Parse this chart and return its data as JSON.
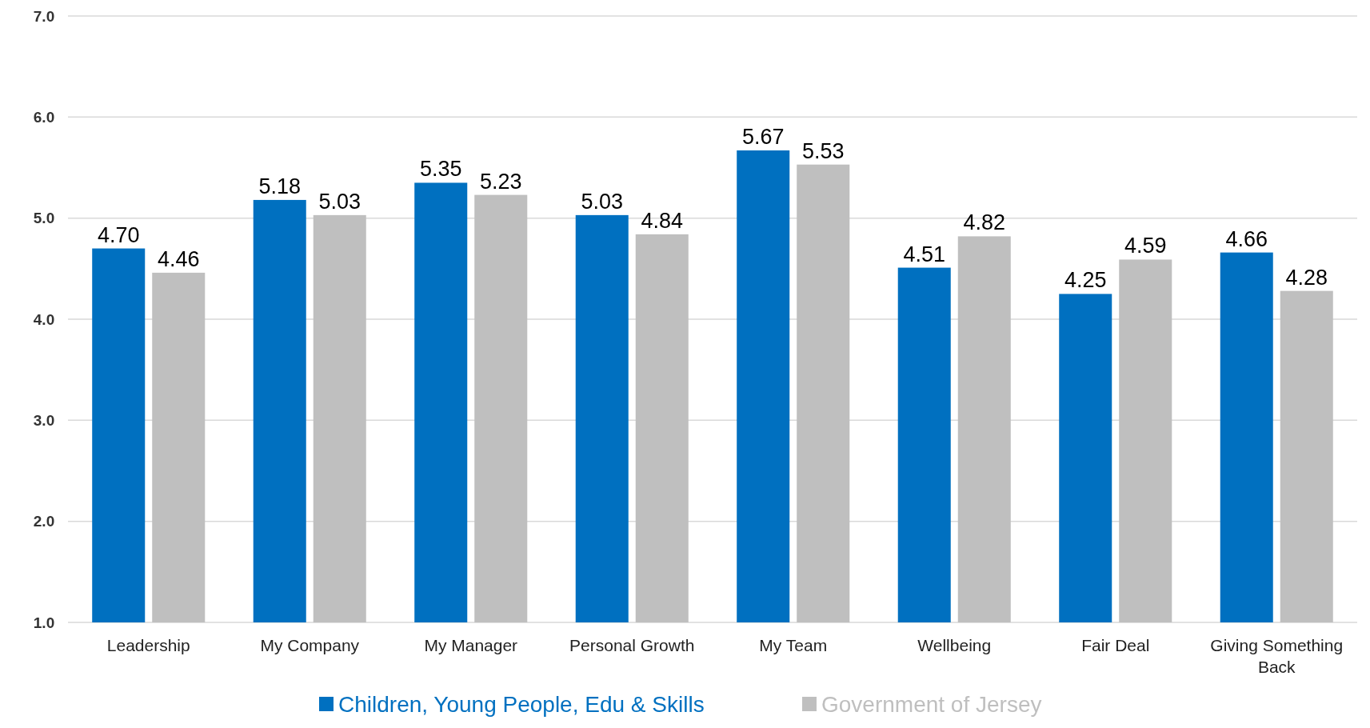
{
  "chart_data": {
    "type": "bar",
    "categories": [
      "Leadership",
      "My Company",
      "My Manager",
      "Personal Growth",
      "My Team",
      "Wellbeing",
      "Fair Deal",
      "Giving Something Back"
    ],
    "series": [
      {
        "name": "Children, Young People, Edu & Skills",
        "color": "#0070c0",
        "values": [
          4.7,
          5.18,
          5.35,
          5.03,
          5.67,
          4.51,
          4.25,
          4.66
        ],
        "value_labels": [
          "4.70",
          "5.18",
          "5.35",
          "5.03",
          "5.67",
          "4.51",
          "4.25",
          "4.66"
        ]
      },
      {
        "name": "Government of Jersey",
        "color": "#bfbfbf",
        "values": [
          4.46,
          5.03,
          5.23,
          4.84,
          5.53,
          4.82,
          4.59,
          4.28
        ],
        "value_labels": [
          "4.46",
          "5.03",
          "5.23",
          "4.84",
          "5.53",
          "4.82",
          "4.59",
          "4.28"
        ]
      }
    ],
    "ylim": [
      1,
      7
    ],
    "yticks": [
      {
        "value": 1,
        "label": "1.0"
      },
      {
        "value": 2,
        "label": "2.0"
      },
      {
        "value": 3,
        "label": "3.0"
      },
      {
        "value": 4,
        "label": "4.0"
      },
      {
        "value": 5,
        "label": "5.0"
      },
      {
        "value": 6,
        "label": "6.0"
      },
      {
        "value": 7,
        "label": "7.0"
      }
    ],
    "grid": "y",
    "legend": "bottom"
  }
}
